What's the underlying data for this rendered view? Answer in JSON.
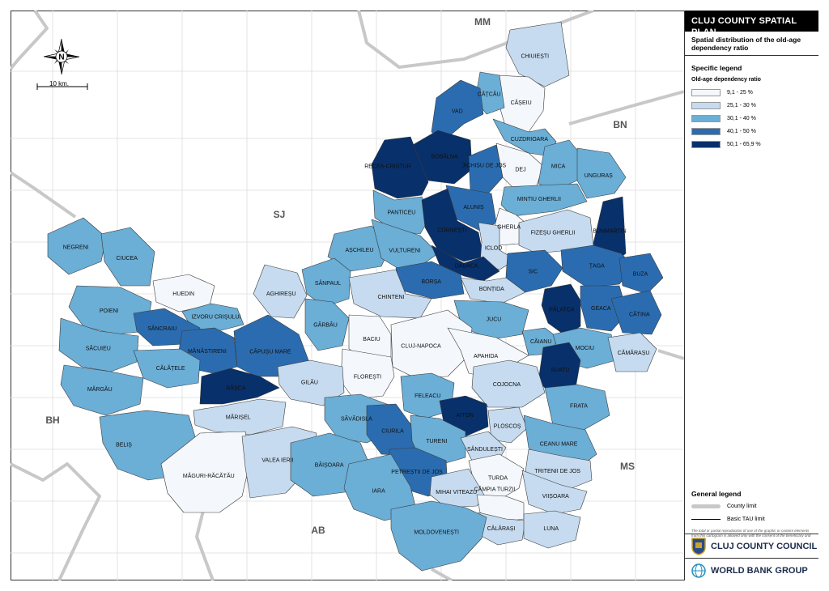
{
  "sidebar": {
    "title": "CLUJ COUNTY SPATIAL PLAN",
    "subtitle": "Spatial distribution of the old-age dependency ratio",
    "specific_legend_title": "Specific legend",
    "legend_subtitle": "Old-age dependency ratio",
    "classes": [
      {
        "label": "9,1 - 25 %",
        "color": "#f4f8fc"
      },
      {
        "label": "25,1 - 30 %",
        "color": "#c6dbef"
      },
      {
        "label": "30,1 - 40 %",
        "color": "#6baed6"
      },
      {
        "label": "40,1 - 50 %",
        "color": "#2b6cb0"
      },
      {
        "label": "50,1 - 65,9 %",
        "color": "#08306b"
      }
    ],
    "general_legend_title": "General legend",
    "general_items": [
      {
        "label": "County limit"
      },
      {
        "label": "Basic TAU limit"
      }
    ],
    "fine_print": "The total or partial reproduction of use of the graphic or content elements from this cartogram is allowed only with the consent of the beneficiary and designer.",
    "logos": [
      {
        "label": "CLUJ COUNTY COUNCIL",
        "icon": "coat-of-arms-icon"
      },
      {
        "label": "WORLD BANK GROUP",
        "icon": "globe-icon"
      }
    ]
  },
  "map": {
    "scale_label": "10 km.",
    "compass_label": "N",
    "neighbors": [
      "MM",
      "BN",
      "SJ",
      "BH",
      "MS",
      "AB"
    ],
    "localities": [
      {
        "name": "CHIUIEȘTI",
        "class": 1
      },
      {
        "name": "CĂȘEIU",
        "class": 0
      },
      {
        "name": "CĂȚCĂU",
        "class": 2
      },
      {
        "name": "VAD",
        "class": 3
      },
      {
        "name": "CUZDRIOARA",
        "class": 2
      },
      {
        "name": "DEJ",
        "class": 0
      },
      {
        "name": "MICA",
        "class": 2
      },
      {
        "name": "UNGURAȘ",
        "class": 2
      },
      {
        "name": "BOBÂLNA",
        "class": 4
      },
      {
        "name": "RECEA-CRISTUR",
        "class": 4
      },
      {
        "name": "JICHIȘU DE JOS",
        "class": 3
      },
      {
        "name": "MINTIU GHERLII",
        "class": 2
      },
      {
        "name": "ALUNIȘ",
        "class": 3
      },
      {
        "name": "PANTICEU",
        "class": 2
      },
      {
        "name": "CORNEȘTI",
        "class": 4
      },
      {
        "name": "GHERLA",
        "class": 0
      },
      {
        "name": "BUNMARTIN",
        "class": 4
      },
      {
        "name": "ICLOD",
        "class": 1
      },
      {
        "name": "FIZEȘU GHERLII",
        "class": 1
      },
      {
        "name": "NEGRENI",
        "class": 2
      },
      {
        "name": "CIUCEA",
        "class": 2
      },
      {
        "name": "AȘCHILEU",
        "class": 2
      },
      {
        "name": "VULTURENI",
        "class": 2
      },
      {
        "name": "DĂBÂCA",
        "class": 4
      },
      {
        "name": "SIC",
        "class": 3
      },
      {
        "name": "ȚAGA",
        "class": 3
      },
      {
        "name": "SÂNPAUL",
        "class": 2
      },
      {
        "name": "BORȘA",
        "class": 3
      },
      {
        "name": "BONȚIDA",
        "class": 1
      },
      {
        "name": "BUZA",
        "class": 3
      },
      {
        "name": "HUEDIN",
        "class": 0
      },
      {
        "name": "AGHIREȘU",
        "class": 1
      },
      {
        "name": "CHINTENI",
        "class": 1
      },
      {
        "name": "PĂLATCA",
        "class": 4
      },
      {
        "name": "GEACA",
        "class": 3
      },
      {
        "name": "POIENI",
        "class": 2
      },
      {
        "name": "IZVORU CRIȘULUI",
        "class": 2
      },
      {
        "name": "JUCU",
        "class": 2
      },
      {
        "name": "CĂTINA",
        "class": 3
      },
      {
        "name": "SÂNCRAIU",
        "class": 3
      },
      {
        "name": "GÂRBĂU",
        "class": 2
      },
      {
        "name": "BACIU",
        "class": 0
      },
      {
        "name": "CĂIANU",
        "class": 2
      },
      {
        "name": "SĂCUIEU",
        "class": 2
      },
      {
        "name": "MĂNĂSTIRENI",
        "class": 3
      },
      {
        "name": "CĂPUȘU MARE",
        "class": 3
      },
      {
        "name": "CLUJ-NAPOCA",
        "class": 0
      },
      {
        "name": "APAHIDA",
        "class": 0
      },
      {
        "name": "MOCIU",
        "class": 2
      },
      {
        "name": "CĂMĂRAȘU",
        "class": 1
      },
      {
        "name": "CĂLĂȚELE",
        "class": 2
      },
      {
        "name": "SUATU",
        "class": 4
      },
      {
        "name": "COJOCNA",
        "class": 1
      },
      {
        "name": "FLOREȘTI",
        "class": 0
      },
      {
        "name": "MĂRGĂU",
        "class": 2
      },
      {
        "name": "RÂȘCA",
        "class": 4
      },
      {
        "name": "GILĂU",
        "class": 1
      },
      {
        "name": "FRATA",
        "class": 2
      },
      {
        "name": "FELEACU",
        "class": 2
      },
      {
        "name": "MĂRIȘEL",
        "class": 1
      },
      {
        "name": "AITON",
        "class": 4
      },
      {
        "name": "BH_BELIS",
        "class": 2
      },
      {
        "name": "SĂVĂDISLA",
        "class": 2
      },
      {
        "name": "CIURILA",
        "class": 3
      },
      {
        "name": "PLOSCOȘ",
        "class": 1
      },
      {
        "name": "CEANU MARE",
        "class": 2
      },
      {
        "name": "TURENI",
        "class": 2
      },
      {
        "name": "SĂNDULEȘTI",
        "class": 1
      },
      {
        "name": "PETREȘTII DE JOS",
        "class": 3
      },
      {
        "name": "TRITENII DE JOS",
        "class": 1
      },
      {
        "name": "MĂGURI-RĂCĂTĂU",
        "class": 0
      },
      {
        "name": "VALEA IERII",
        "class": 1
      },
      {
        "name": "BĂIȘOARA",
        "class": 2
      },
      {
        "name": "TURDA",
        "class": 0
      },
      {
        "name": "VIIȘOARA",
        "class": 1
      },
      {
        "name": "IARA",
        "class": 2
      },
      {
        "name": "MIHAI VITEAZU",
        "class": 1
      },
      {
        "name": "CÂMPIA TURZII",
        "class": 0
      },
      {
        "name": "CĂLĂRAȘI",
        "class": 1
      },
      {
        "name": "LUNA",
        "class": 1
      },
      {
        "name": "MOLDOVENEȘTI",
        "class": 2
      }
    ]
  }
}
